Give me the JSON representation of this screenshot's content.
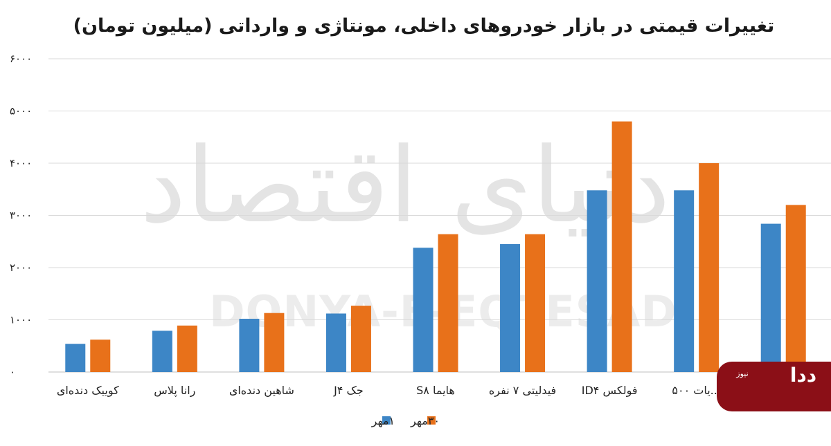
{
  "chart_data": {
    "type": "bar",
    "title": "تغییرات قیمتی در بازار خودروهای داخلی، مونتاژی و وارداتی (میلیون تومان)",
    "categories": [
      "کوییک دنده‌ای",
      "رانا پلاس",
      "شاهین دنده‌ای",
      "جک J۴",
      "هایما S۸",
      "فیدلیتی ۷ نفره",
      "فولکس ID۴",
      "...یات ۵۰۰",
      ""
    ],
    "series": [
      {
        "name": "۱مهر",
        "color": "#3d86c6",
        "values": [
          540,
          790,
          1020,
          1120,
          2380,
          2450,
          3480,
          3480,
          2840
        ]
      },
      {
        "name": "۳۰مهر",
        "color": "#e8711a",
        "values": [
          620,
          890,
          1130,
          1270,
          2640,
          2640,
          4800,
          4000,
          3200
        ]
      }
    ],
    "ylim": [
      0,
      6000
    ],
    "yticks": [
      0,
      1000,
      2000,
      3000,
      4000,
      5000,
      6000
    ],
    "ytick_labels": [
      "۰",
      "۱۰۰۰",
      "۲۰۰۰",
      "۳۰۰۰",
      "۴۰۰۰",
      "۵۰۰۰",
      "۶۰۰۰"
    ],
    "grid": true,
    "legend": "bottom"
  },
  "watermark": {
    "text_fa": "دنیای اقتصاد",
    "text_en": "DONYA-E-EQTESAD"
  },
  "logo": {
    "small": "نیوز",
    "mark": "ددا",
    "color": "#8b0f17"
  }
}
